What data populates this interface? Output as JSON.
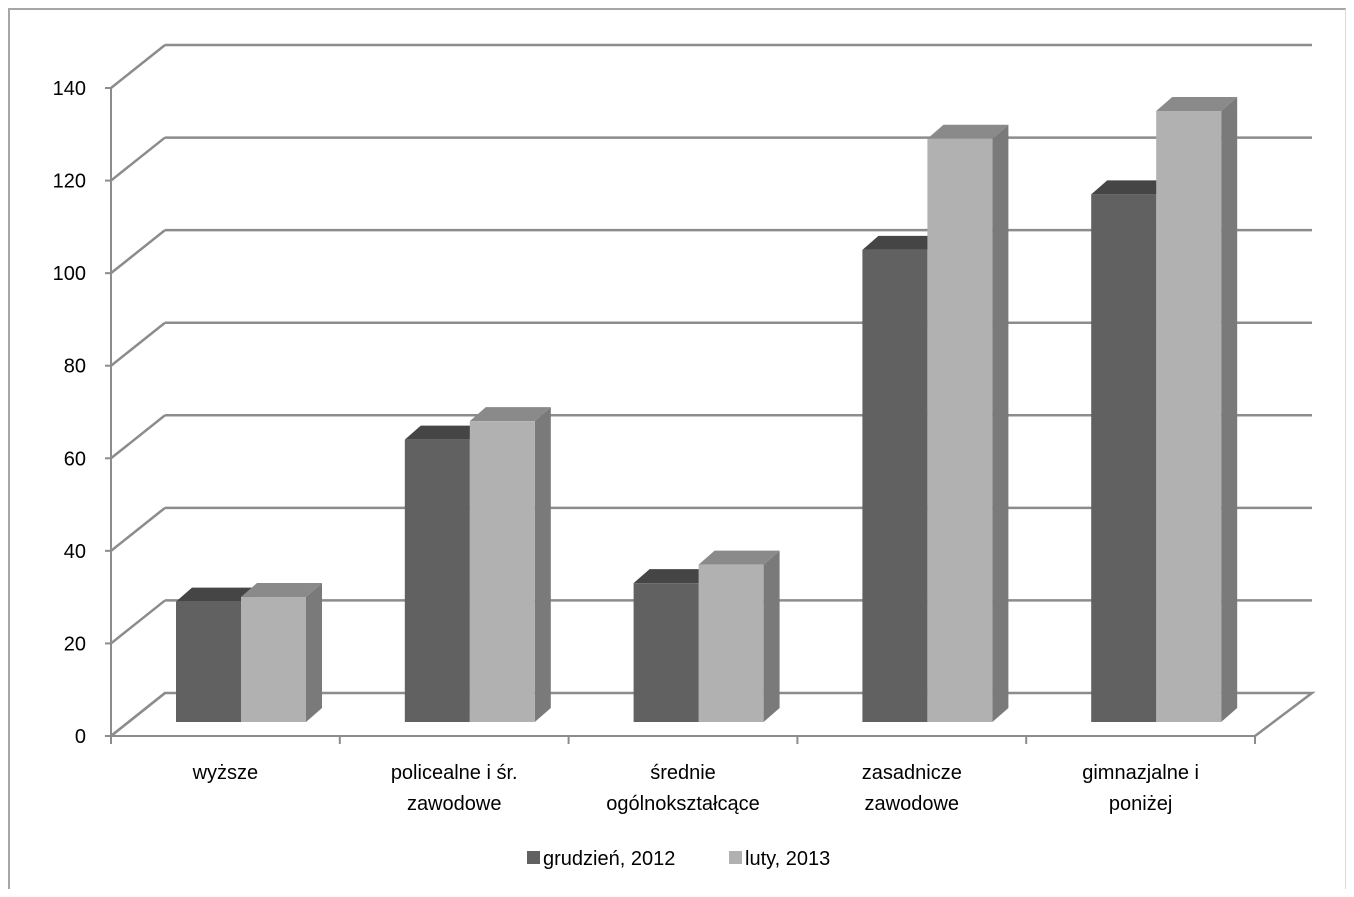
{
  "chart_data": {
    "type": "bar",
    "categories": [
      [
        "wyższe"
      ],
      [
        "policealne i śr.",
        "zawodowe"
      ],
      [
        "średnie",
        "ogólnokształcące"
      ],
      [
        "zasadnicze",
        "zawodowe"
      ],
      [
        "gimnazjalne i",
        "poniżej"
      ]
    ],
    "series": [
      {
        "name": "grudzień, 2012",
        "values": [
          26,
          61,
          30,
          102,
          114
        ],
        "color": "#616161",
        "side_color": "#767676",
        "top_color": "#454545"
      },
      {
        "name": "luty, 2013",
        "values": [
          27,
          65,
          34,
          126,
          132
        ],
        "color": "#b1b1b1",
        "side_color": "#7a7a7a",
        "top_color": "#8a8a8a"
      }
    ],
    "ylim": [
      0,
      140
    ],
    "yticks": [
      "0",
      "20",
      "40",
      "60",
      "80",
      "100",
      "120",
      "140"
    ],
    "ytick_values": [
      0,
      20,
      40,
      60,
      80,
      100,
      120,
      140
    ],
    "grid": true,
    "legend_position": "bottom",
    "title": "",
    "xlabel": "",
    "ylabel": "",
    "colors": {
      "gridline": "#8c8c8c",
      "axis": "#8c8c8c",
      "frame": "#a6a6a6"
    }
  }
}
